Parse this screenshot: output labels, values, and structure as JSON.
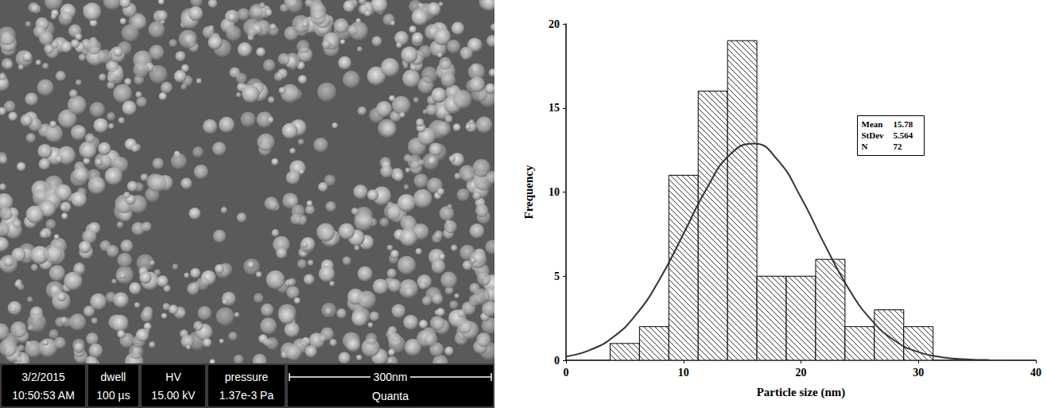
{
  "micrograph": {
    "info": [
      {
        "top": "3/2/2015",
        "bottom": "10:50:53 AM"
      },
      {
        "top": "dwell",
        "bottom": "100 µs"
      },
      {
        "top": "HV",
        "bottom": "15.00 kV"
      },
      {
        "top": "pressure",
        "bottom": "1.37e-3 Pa"
      }
    ],
    "scale_bar": "300nm",
    "instrument": "Quanta"
  },
  "chart_data": {
    "type": "histogram",
    "x_label": "Particle size (nm)",
    "y_label": "Frequency",
    "bins": [
      3.75,
      6.25,
      8.75,
      11.25,
      13.75,
      16.25,
      18.75,
      21.25,
      23.75,
      26.25,
      28.75,
      31.25
    ],
    "counts": [
      1,
      2,
      11,
      16,
      19,
      5,
      5,
      6,
      2,
      3,
      2
    ],
    "color": "#000000",
    "xlim": [
      0,
      40
    ],
    "xticks": [
      0,
      10,
      20,
      30,
      40
    ],
    "ylim": [
      0,
      20
    ],
    "yticks": [
      0,
      5,
      10,
      15,
      20
    ],
    "grid": false,
    "fit": {
      "type": "line",
      "color": "#333333",
      "x": [
        0,
        2,
        4,
        6,
        8,
        10,
        12,
        14,
        16,
        18,
        20,
        22,
        24,
        26,
        28,
        30,
        32,
        34,
        36
      ],
      "values": [
        0.23,
        0.6,
        1.37,
        2.75,
        4.85,
        7.52,
        10.24,
        12.26,
        12.89,
        11.92,
        9.68,
        6.91,
        4.33,
        2.39,
        1.16,
        0.49,
        0.18,
        0.06,
        0.02
      ]
    },
    "stats": [
      {
        "label": "Mean",
        "value": 15.78
      },
      {
        "label": "StDev",
        "value": 5.564
      },
      {
        "label": "N",
        "value": 72
      }
    ]
  }
}
